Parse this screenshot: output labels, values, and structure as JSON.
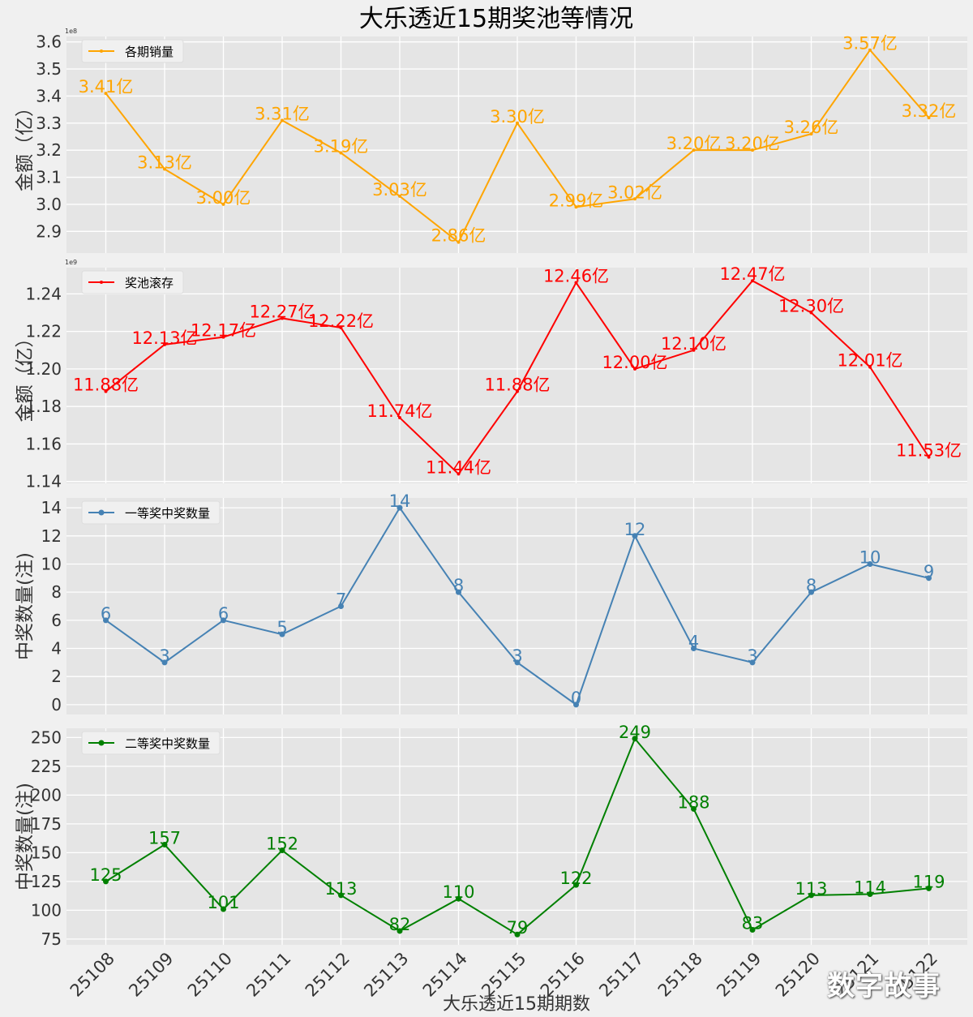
{
  "title": "大乐透近15期奖池等情况",
  "xlabel": "大乐透近15期期数",
  "watermark": "数字故事",
  "chart_data": [
    {
      "type": "line",
      "series_name": "各期销量",
      "color": "#ffa500",
      "ylabel": "金额（亿）",
      "offset_text": "1e8",
      "ylim": [
        2.82,
        3.62
      ],
      "yticks": [
        2.9,
        3.0,
        3.1,
        3.2,
        3.3,
        3.4,
        3.5,
        3.6
      ],
      "ytick_labels": [
        "2.9",
        "3.0",
        "3.1",
        "3.2",
        "3.3",
        "3.4",
        "3.5",
        "3.6"
      ],
      "categories": [
        "25108",
        "25109",
        "25110",
        "25111",
        "25112",
        "25113",
        "25114",
        "25115",
        "25116",
        "25117",
        "25118",
        "25119",
        "25120",
        "25121",
        "25122"
      ],
      "values": [
        3.41,
        3.13,
        3.0,
        3.31,
        3.19,
        3.03,
        2.86,
        3.3,
        2.99,
        3.02,
        3.2,
        3.2,
        3.26,
        3.57,
        3.32
      ],
      "labels": [
        "3.41亿",
        "3.13亿",
        "3.00亿",
        "3.31亿",
        "3.19亿",
        "3.03亿",
        "2.86亿",
        "3.30亿",
        "2.99亿",
        "3.02亿",
        "3.20亿",
        "3.20亿",
        "3.26亿",
        "3.57亿",
        "3.32亿"
      ],
      "marker": "small"
    },
    {
      "type": "line",
      "series_name": "奖池滚存",
      "color": "#ff0000",
      "ylabel": "金额（亿）",
      "offset_text": "1e9",
      "ylim": [
        1.139,
        1.254
      ],
      "yticks": [
        1.14,
        1.16,
        1.18,
        1.2,
        1.22,
        1.24
      ],
      "ytick_labels": [
        "1.14",
        "1.16",
        "1.18",
        "1.20",
        "1.22",
        "1.24"
      ],
      "categories": [
        "25108",
        "25109",
        "25110",
        "25111",
        "25112",
        "25113",
        "25114",
        "25115",
        "25116",
        "25117",
        "25118",
        "25119",
        "25120",
        "25121",
        "25122"
      ],
      "values": [
        1.188,
        1.213,
        1.217,
        1.227,
        1.222,
        1.174,
        1.144,
        1.188,
        1.246,
        1.2,
        1.21,
        1.247,
        1.23,
        1.201,
        1.153
      ],
      "labels": [
        "11.88亿",
        "12.13亿",
        "12.17亿",
        "12.27亿",
        "12.22亿",
        "11.74亿",
        "11.44亿",
        "11.88亿",
        "12.46亿",
        "12.00亿",
        "12.10亿",
        "12.47亿",
        "12.30亿",
        "12.01亿",
        "11.53亿"
      ],
      "marker": "small"
    },
    {
      "type": "line",
      "series_name": "一等奖中奖数量",
      "color": "#4682b4",
      "ylabel": "中奖数量(注)",
      "offset_text": "",
      "ylim": [
        -0.7,
        14.7
      ],
      "yticks": [
        0,
        2,
        4,
        6,
        8,
        10,
        12,
        14
      ],
      "ytick_labels": [
        "0",
        "2",
        "4",
        "6",
        "8",
        "10",
        "12",
        "14"
      ],
      "categories": [
        "25108",
        "25109",
        "25110",
        "25111",
        "25112",
        "25113",
        "25114",
        "25115",
        "25116",
        "25117",
        "25118",
        "25119",
        "25120",
        "25121",
        "25122"
      ],
      "values": [
        6,
        3,
        6,
        5,
        7,
        14,
        8,
        3,
        0,
        12,
        4,
        3,
        8,
        10,
        9
      ],
      "labels": [
        "6",
        "3",
        "6",
        "5",
        "7",
        "14",
        "8",
        "3",
        "0",
        "12",
        "4",
        "3",
        "8",
        "10",
        "9"
      ],
      "marker": "circle"
    },
    {
      "type": "line",
      "series_name": "二等奖中奖数量",
      "color": "#008000",
      "ylabel": "中奖数量(注)",
      "offset_text": "",
      "ylim": [
        70,
        258
      ],
      "yticks": [
        75,
        100,
        125,
        150,
        175,
        200,
        225,
        250
      ],
      "ytick_labels": [
        "75",
        "100",
        "125",
        "150",
        "175",
        "200",
        "225",
        "250"
      ],
      "categories": [
        "25108",
        "25109",
        "25110",
        "25111",
        "25112",
        "25113",
        "25114",
        "25115",
        "25116",
        "25117",
        "25118",
        "25119",
        "25120",
        "25121",
        "25122"
      ],
      "values": [
        125,
        157,
        101,
        152,
        113,
        82,
        110,
        79,
        122,
        249,
        188,
        83,
        113,
        114,
        119
      ],
      "labels": [
        "125",
        "157",
        "101",
        "152",
        "113",
        "82",
        "110",
        "79",
        "122",
        "249",
        "188",
        "83",
        "113",
        "114",
        "119"
      ],
      "marker": "circle"
    }
  ]
}
